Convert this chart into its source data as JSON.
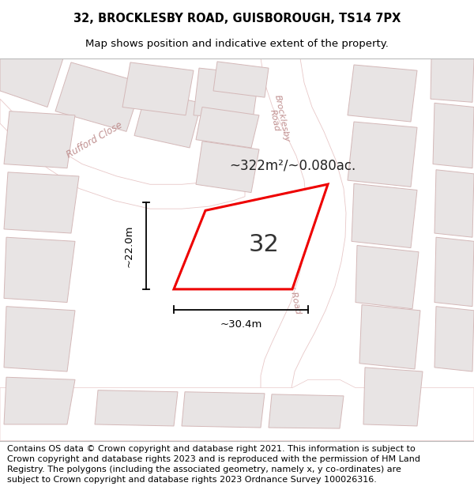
{
  "title_line1": "32, BROCKLESBY ROAD, GUISBOROUGH, TS14 7PX",
  "title_line2": "Map shows position and indicative extent of the property.",
  "footer_text": "Contains OS data © Crown copyright and database right 2021. This information is subject to Crown copyright and database rights 2023 and is reproduced with the permission of HM Land Registry. The polygons (including the associated geometry, namely x, y co-ordinates) are subject to Crown copyright and database rights 2023 Ordnance Survey 100026316.",
  "area_text": "~322m²/~0.080ac.",
  "plot_label": "32",
  "dim_width": "~30.4m",
  "dim_height": "~22.0m",
  "map_bg": "#f7f4f4",
  "road_fill": "#ffffff",
  "road_edge": "#e8c8c8",
  "block_fill": "#e8e4e4",
  "block_edge": "#d4b8b8",
  "plot_edge": "#ee0000",
  "plot_fill": "#ffffff",
  "street_color": "#c09090",
  "title_fontsize": 10.5,
  "subtitle_fontsize": 9.5,
  "footer_fontsize": 8.0,
  "area_fontsize": 12,
  "label_fontsize": 22,
  "dim_fontsize": 9.5
}
